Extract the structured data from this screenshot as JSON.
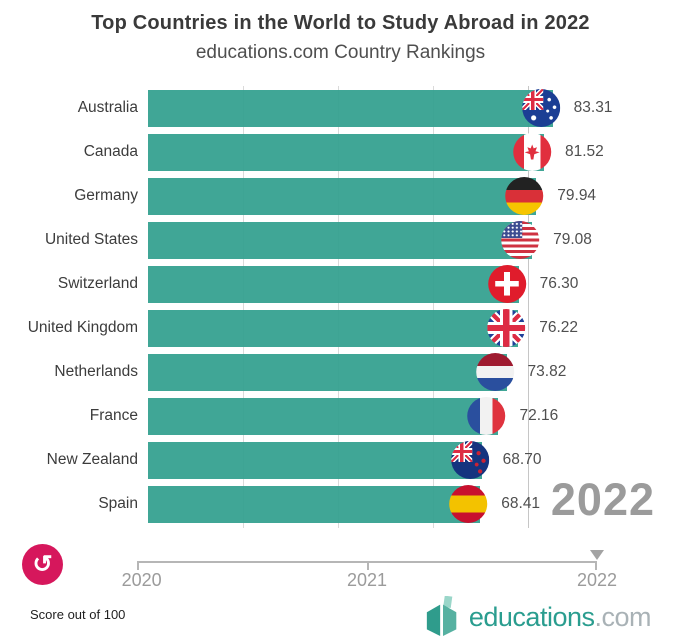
{
  "header": {
    "title": "Top Countries in the World to Study Abroad in 2022",
    "subtitle": "educations.com Country Rankings"
  },
  "chart_data": {
    "type": "bar",
    "orientation": "horizontal",
    "title": "Top Countries in the World to Study Abroad in 2022",
    "subtitle": "educations.com Country Rankings",
    "xlabel": "Score out of 100",
    "axis_range": [
      0,
      87.5
    ],
    "grid": true,
    "categories": [
      "Australia",
      "Canada",
      "Germany",
      "United States",
      "Switzerland",
      "United Kingdom",
      "Netherlands",
      "France",
      "New Zealand",
      "Spain"
    ],
    "values": [
      83.31,
      81.52,
      79.94,
      79.08,
      76.3,
      76.22,
      73.82,
      72.16,
      68.7,
      68.41
    ],
    "value_labels": [
      "83.31",
      "81.52",
      "79.94",
      "79.08",
      "76.30",
      "76.22",
      "73.82",
      "72.16",
      "68.70",
      "68.41"
    ],
    "flags": [
      "australia",
      "canada",
      "germany",
      "united-states",
      "switzerland",
      "united-kingdom",
      "netherlands",
      "france",
      "new-zealand",
      "spain"
    ],
    "current_year": "2022"
  },
  "watermark": {
    "text": "2022"
  },
  "timeline": {
    "labels": [
      "2020",
      "2021",
      "2022"
    ],
    "current": "2022"
  },
  "controls": {
    "replay_icon": "↺"
  },
  "footer": {
    "note": "Score out of 100",
    "logo_name": "educations",
    "logo_tld": ".com"
  },
  "colors": {
    "bar": "#34a08f",
    "accent_pink": "#d6175c",
    "logo_teal": "#2a9d8f",
    "watermark_gray": "#9b9b9b"
  }
}
